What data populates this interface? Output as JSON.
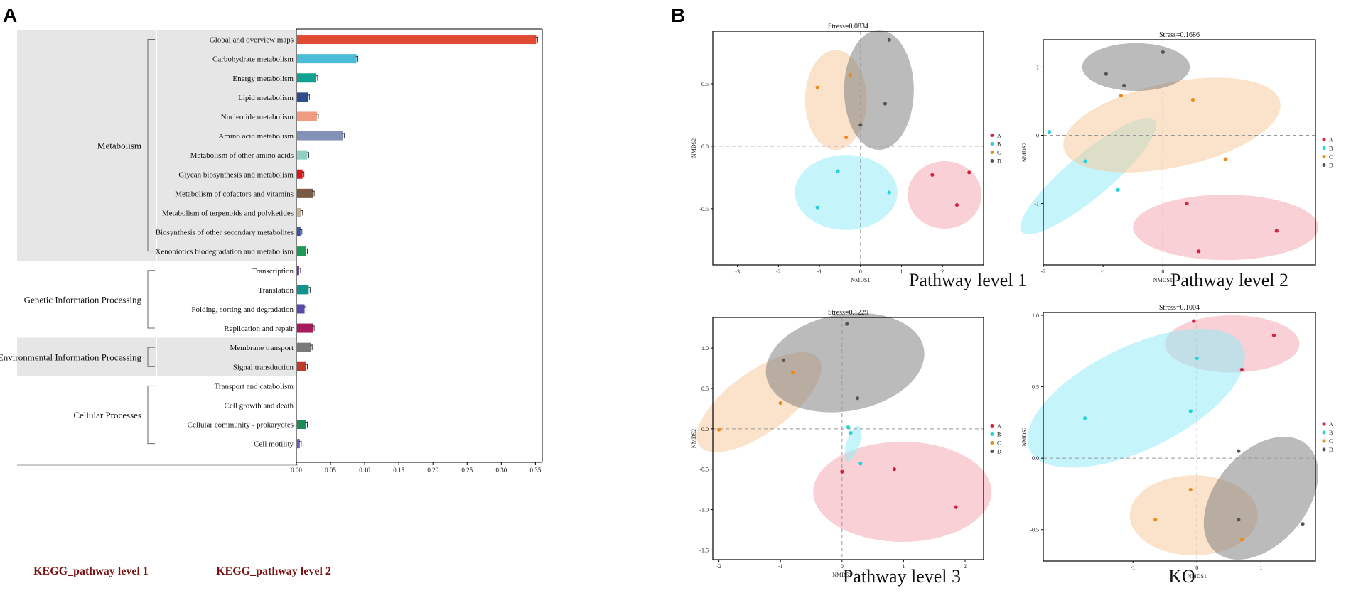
{
  "panel_a": {
    "letter": "A",
    "axis_caption_level1": "KEGG_pathway level 1",
    "axis_caption_level2": "KEGG_pathway level 2"
  },
  "panel_b": {
    "letter": "B"
  },
  "chart_data": [
    {
      "type": "bar",
      "orientation": "horizontal",
      "title": "",
      "xlabel": "",
      "ylabel": "",
      "xlim": [
        0,
        0.36
      ],
      "xticks": [
        "0.00",
        "0.05",
        "0.10",
        "0.15",
        "0.20",
        "0.25",
        "0.30",
        "0.35"
      ],
      "groups": [
        {
          "name": "Metabolism",
          "shaded": true
        },
        {
          "name": "Genetic Information Processing",
          "shaded": false
        },
        {
          "name": "Environmental Information Processing",
          "shaded": true
        },
        {
          "name": "Cellular Processes",
          "shaded": false
        }
      ],
      "categories": [
        {
          "label": "Global and overview maps",
          "group": 0,
          "value": 0.35,
          "color": "#e04a32"
        },
        {
          "label": "Carbohydrate metabolism",
          "group": 0,
          "value": 0.087,
          "color": "#4bbdd8"
        },
        {
          "label": "Energy metabolism",
          "group": 0,
          "value": 0.028,
          "color": "#12a090"
        },
        {
          "label": "Lipid metabolism",
          "group": 0,
          "value": 0.016,
          "color": "#2f4c8c"
        },
        {
          "label": "Nucleotide metabolism",
          "group": 0,
          "value": 0.029,
          "color": "#f09a80"
        },
        {
          "label": "Amino acid metabolism",
          "group": 0,
          "value": 0.067,
          "color": "#8491b6"
        },
        {
          "label": "Metabolism of other amino acids",
          "group": 0,
          "value": 0.015,
          "color": "#8ed1c3"
        },
        {
          "label": "Glycan biosynthesis and metabolism",
          "group": 0,
          "value": 0.008,
          "color": "#d81818"
        },
        {
          "label": "Metabolism of cofactors and vitamins",
          "group": 0,
          "value": 0.023,
          "color": "#7a5a45"
        },
        {
          "label": "Metabolism of terpenoids and polyketides",
          "group": 0,
          "value": 0.006,
          "color": "#c8b39a"
        },
        {
          "label": "Biosynthesis of other secondary metabolites",
          "group": 0,
          "value": 0.005,
          "color": "#3b52a6"
        },
        {
          "label": "Xenobiotics biodegradation and metabolism",
          "group": 0,
          "value": 0.013,
          "color": "#1d9a5a"
        },
        {
          "label": "Transcription",
          "group": 1,
          "value": 0.003,
          "color": "#6b2f9a"
        },
        {
          "label": "Translation",
          "group": 1,
          "value": 0.017,
          "color": "#12928a"
        },
        {
          "label": "Folding, sorting and degradation",
          "group": 1,
          "value": 0.011,
          "color": "#5a4aa8"
        },
        {
          "label": "Replication and repair",
          "group": 1,
          "value": 0.023,
          "color": "#a81a5e"
        },
        {
          "label": "Membrane transport",
          "group": 2,
          "value": 0.02,
          "color": "#7a7a7a"
        },
        {
          "label": "Signal transduction",
          "group": 2,
          "value": 0.013,
          "color": "#c0392b"
        },
        {
          "label": "Transport and catabolism",
          "group": 3,
          "value": 0.0,
          "color": "#888888"
        },
        {
          "label": "Cell growth and death",
          "group": 3,
          "value": 0.0,
          "color": "#888888"
        },
        {
          "label": "Cellular community - prokaryotes",
          "group": 3,
          "value": 0.013,
          "color": "#1d8a5a"
        },
        {
          "label": "Cell motility",
          "group": 3,
          "value": 0.004,
          "color": "#6a5ac8"
        }
      ]
    },
    {
      "type": "scatter",
      "title": "Pathway level 1",
      "stress": "Stress=0.0834",
      "xlabel": "NMDS1",
      "ylabel": "NMDS2",
      "xlim": [
        -3.6,
        3.0
      ],
      "ylim": [
        -0.95,
        0.92
      ],
      "xticks": [
        -3,
        -2,
        -1,
        0,
        1,
        2
      ],
      "yticks": [
        0.5,
        0.0,
        -0.5
      ],
      "ytick_labels": [
        "0.5",
        "0.0",
        "-0.5"
      ],
      "ref_x": 0,
      "ref_y": 0,
      "groups": [
        {
          "name": "A",
          "color": "#d6203c",
          "fill": "rgba(240,150,165,0.45)",
          "points": [
            [
              1.75,
              -0.23
            ],
            [
              2.65,
              -0.21
            ],
            [
              2.35,
              -0.47
            ]
          ],
          "ellipse": {
            "cx": 2.05,
            "cy": -0.39,
            "rx": 0.9,
            "ry": 0.27,
            "rot": 0
          }
        },
        {
          "name": "B",
          "color": "#22d3de",
          "fill": "rgba(150,235,245,0.55)",
          "points": [
            [
              -0.55,
              -0.2
            ],
            [
              0.7,
              -0.37
            ],
            [
              -1.05,
              -0.49
            ]
          ],
          "ellipse": {
            "cx": -0.35,
            "cy": -0.37,
            "rx": 1.25,
            "ry": 0.3,
            "rot": 0
          }
        },
        {
          "name": "C",
          "color": "#ee8a1a",
          "fill": "rgba(245,200,150,0.5)",
          "points": [
            [
              -1.05,
              0.47
            ],
            [
              -0.25,
              0.57
            ],
            [
              -0.35,
              0.07
            ]
          ],
          "ellipse": {
            "cx": -0.6,
            "cy": 0.37,
            "rx": 0.75,
            "ry": 0.4,
            "rot": 0
          }
        },
        {
          "name": "D",
          "color": "#555555",
          "fill": "rgba(120,120,120,0.5)",
          "points": [
            [
              0.7,
              0.85
            ],
            [
              0.6,
              0.34
            ],
            [
              0,
              0.17
            ]
          ],
          "ellipse": {
            "cx": 0.45,
            "cy": 0.45,
            "rx": 0.85,
            "ry": 0.48,
            "rot": 0
          }
        }
      ]
    },
    {
      "type": "scatter",
      "title": "Pathway level 2",
      "stress": "Stress=0.1686",
      "xlabel": "NMDS1",
      "ylabel": "NMDS2",
      "xlim": [
        -2.0,
        2.55
      ],
      "ylim": [
        -1.9,
        1.4
      ],
      "xticks": [
        -2,
        -1,
        0
      ],
      "yticks": [
        1,
        0,
        -1
      ],
      "ytick_labels": [
        "1",
        "0",
        "-1"
      ],
      "ref_x": 0,
      "ref_y": 0,
      "groups": [
        {
          "name": "A",
          "color": "#d6203c",
          "fill": "rgba(240,150,165,0.45)",
          "points": [
            [
              0.4,
              -1.0
            ],
            [
              1.9,
              -1.4
            ],
            [
              0.6,
              -1.7
            ]
          ],
          "ellipse": {
            "cx": 1.05,
            "cy": -1.35,
            "rx": 1.55,
            "ry": 0.48,
            "rot": 0
          }
        },
        {
          "name": "B",
          "color": "#22d3de",
          "fill": "rgba(150,235,245,0.55)",
          "points": [
            [
              -1.9,
              0.05
            ],
            [
              -1.3,
              -0.38
            ],
            [
              -0.75,
              -0.8
            ]
          ],
          "ellipse": {
            "cx": -1.25,
            "cy": -0.6,
            "rx": 1.45,
            "ry": 0.32,
            "rot": -40
          }
        },
        {
          "name": "C",
          "color": "#ee8a1a",
          "fill": "rgba(245,200,150,0.5)",
          "points": [
            [
              -0.7,
              0.58
            ],
            [
              0.5,
              0.52
            ],
            [
              1.05,
              -0.35
            ]
          ],
          "ellipse": {
            "cx": 0.15,
            "cy": 0.15,
            "rx": 1.85,
            "ry": 0.62,
            "rot": -12
          }
        },
        {
          "name": "D",
          "color": "#555555",
          "fill": "rgba(120,120,120,0.5)",
          "points": [
            [
              -0.95,
              0.9
            ],
            [
              -0.65,
              0.73
            ],
            [
              0,
              1.22
            ]
          ],
          "ellipse": {
            "cx": -0.45,
            "cy": 1.0,
            "rx": 0.9,
            "ry": 0.35,
            "rot": 0
          }
        }
      ]
    },
    {
      "type": "scatter",
      "title": "Pathway level 3",
      "stress": "Stress=0.1229",
      "xlabel": "NMDS1",
      "ylabel": "NMDS2",
      "xlim": [
        -2.1,
        2.3
      ],
      "ylim": [
        -1.62,
        1.38
      ],
      "xticks": [
        -2,
        -1,
        0,
        1,
        2
      ],
      "yticks": [
        1.0,
        0.5,
        0.0,
        -0.5,
        -1.0,
        -1.5
      ],
      "ytick_labels": [
        "1.0",
        "0.5",
        "0.0",
        "-0.5",
        "-1.0",
        "-1.5"
      ],
      "ref_x": 0,
      "ref_y": 0,
      "groups": [
        {
          "name": "A",
          "color": "#d6203c",
          "fill": "rgba(240,150,165,0.45)",
          "points": [
            [
              0.0,
              -0.53
            ],
            [
              0.85,
              -0.5
            ],
            [
              1.85,
              -0.97
            ]
          ],
          "ellipse": {
            "cx": 0.98,
            "cy": -0.78,
            "rx": 1.45,
            "ry": 0.62,
            "rot": 0
          }
        },
        {
          "name": "B",
          "color": "#22d3de",
          "fill": "rgba(150,235,245,0.55)",
          "points": [
            [
              0.1,
              0.02
            ],
            [
              0.14,
              -0.05
            ],
            [
              0.3,
              -0.43
            ]
          ],
          "ellipse": {
            "cx": 0.18,
            "cy": -0.18,
            "rx": 0.3,
            "ry": 0.08,
            "rot": -72
          }
        },
        {
          "name": "C",
          "color": "#ee8a1a",
          "fill": "rgba(245,200,150,0.5)",
          "points": [
            [
              -2.0,
              -0.01
            ],
            [
              -1.0,
              0.32
            ],
            [
              -0.8,
              0.7
            ]
          ],
          "ellipse": {
            "cx": -1.35,
            "cy": 0.33,
            "rx": 1.2,
            "ry": 0.38,
            "rot": -36
          }
        },
        {
          "name": "D",
          "color": "#555555",
          "fill": "rgba(120,120,120,0.5)",
          "points": [
            [
              0.08,
              1.3
            ],
            [
              -0.95,
              0.85
            ],
            [
              0.25,
              0.38
            ]
          ],
          "ellipse": {
            "cx": 0.05,
            "cy": 0.82,
            "rx": 1.3,
            "ry": 0.6,
            "rot": -10
          }
        }
      ]
    },
    {
      "type": "scatter",
      "title": "KO",
      "stress": "Stress=0.1004",
      "xlabel": "NMDS1",
      "ylabel": "NMDS2",
      "xlim": [
        -2.4,
        1.85
      ],
      "ylim": [
        -0.72,
        1.02
      ],
      "xticks": [
        -1,
        0,
        1
      ],
      "yticks": [
        1.0,
        0.5,
        0.0,
        -0.5
      ],
      "ytick_labels": [
        "1.0",
        "0.5",
        "0.0",
        "-0.5"
      ],
      "ref_x": 0,
      "ref_y": 0,
      "groups": [
        {
          "name": "A",
          "color": "#d6203c",
          "fill": "rgba(240,150,165,0.45)",
          "points": [
            [
              -0.05,
              0.96
            ],
            [
              1.2,
              0.86
            ],
            [
              0.7,
              0.62
            ]
          ],
          "ellipse": {
            "cx": 0.55,
            "cy": 0.8,
            "rx": 1.05,
            "ry": 0.2,
            "rot": 0
          }
        },
        {
          "name": "B",
          "color": "#22d3de",
          "fill": "rgba(150,235,245,0.55)",
          "points": [
            [
              -1.75,
              0.28
            ],
            [
              -0.1,
              0.33
            ],
            [
              0.0,
              0.7
            ]
          ],
          "ellipse": {
            "cx": -0.95,
            "cy": 0.42,
            "rx": 1.85,
            "ry": 0.36,
            "rot": -26
          }
        },
        {
          "name": "C",
          "color": "#ee8a1a",
          "fill": "rgba(245,200,150,0.5)",
          "points": [
            [
              -0.65,
              -0.43
            ],
            [
              -0.1,
              -0.22
            ],
            [
              0.7,
              -0.57
            ]
          ],
          "ellipse": {
            "cx": -0.05,
            "cy": -0.4,
            "rx": 1.0,
            "ry": 0.28,
            "rot": 0
          }
        },
        {
          "name": "D",
          "color": "#555555",
          "fill": "rgba(120,120,120,0.5)",
          "points": [
            [
              0.65,
              0.05
            ],
            [
              1.65,
              -0.46
            ],
            [
              0.65,
              -0.43
            ]
          ],
          "ellipse": {
            "cx": 1.0,
            "cy": -0.28,
            "rx": 1.1,
            "ry": 0.32,
            "rot": -50
          }
        }
      ]
    }
  ]
}
